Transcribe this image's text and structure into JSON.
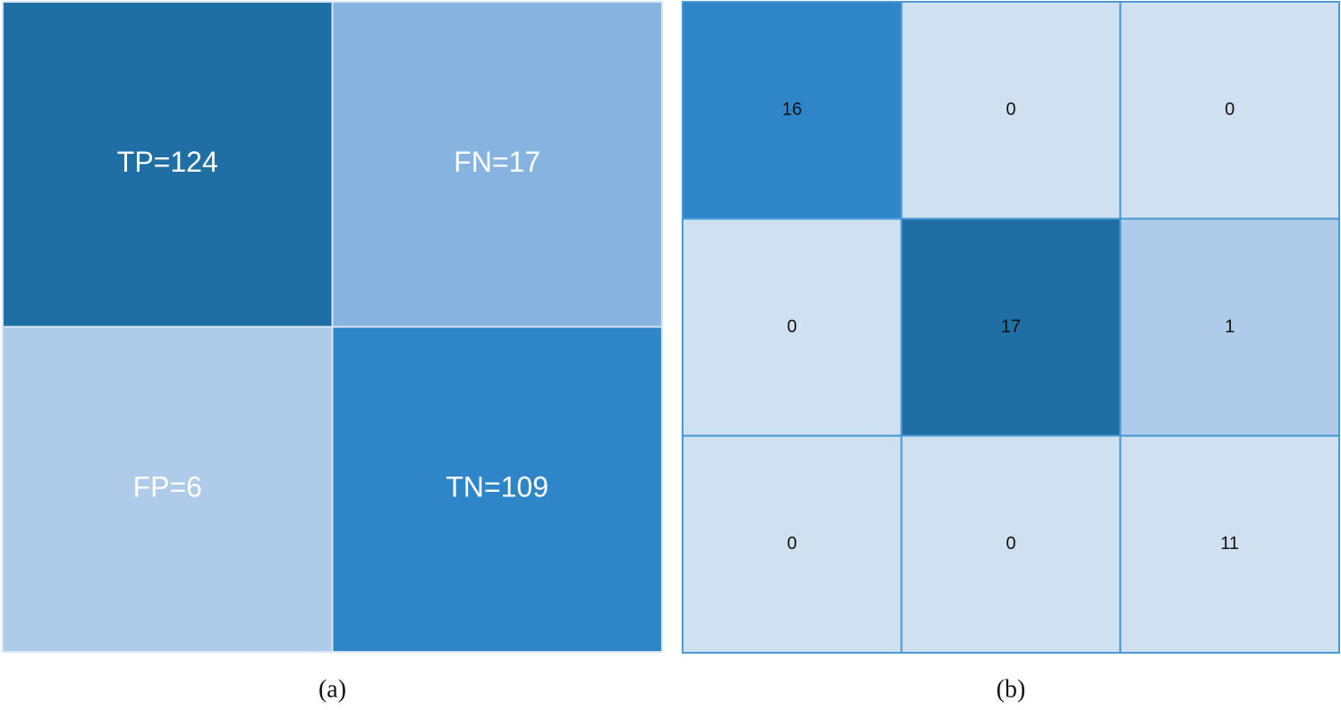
{
  "chart_data": [
    {
      "type": "heatmap",
      "title": "(a)",
      "values": [
        [
          124,
          17
        ],
        [
          6,
          109
        ]
      ],
      "value_labels": [
        [
          "TP=124",
          "FN=17"
        ],
        [
          "FP=6",
          "TN=109"
        ]
      ],
      "colors": [
        [
          "#1f6fa5",
          "#86b3df"
        ],
        [
          "#aecbe9",
          "#2e86c8"
        ]
      ],
      "text_color": "#ffffff",
      "border_color": "#d6e6f4"
    },
    {
      "type": "heatmap",
      "title": "(b)",
      "values": [
        [
          16,
          0,
          0
        ],
        [
          0,
          17,
          1
        ],
        [
          0,
          0,
          11
        ]
      ],
      "colors": [
        [
          "#2e86c8",
          "#cfe0f1",
          "#cfe0f1"
        ],
        [
          "#cfe0f1",
          "#1f6fa5",
          "#aecbe9"
        ],
        [
          "#cfe0f1",
          "#cfe0f1",
          "#cfe0f1"
        ]
      ],
      "text_color": "#111111",
      "border_color": "#4a9ad4"
    }
  ]
}
